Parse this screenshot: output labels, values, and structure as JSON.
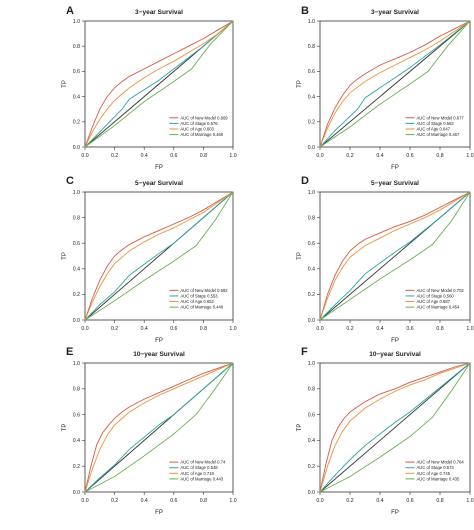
{
  "figure": {
    "xlabel": "FP",
    "ylabel": "TP",
    "ticks": [
      "0.0",
      "0.2",
      "0.4",
      "0.6",
      "0.8",
      "1.0"
    ]
  },
  "chart_data": [
    {
      "panel": "A",
      "type": "line",
      "title": "3−year Survival",
      "xlim": [
        0,
        1
      ],
      "ylim": [
        0,
        1
      ],
      "xlabel": "FP",
      "ylabel": "TP",
      "legend_position": "bottom-right",
      "legend": [
        "AUC of New Model 0.669",
        "AUC of Stage 0.576",
        "AUC of Age 0.603",
        "AUC of Marriage 0.460"
      ],
      "series": [
        {
          "name": "New Model",
          "color": "#d55a4a",
          "x": [
            0,
            0.05,
            0.1,
            0.15,
            0.2,
            0.25,
            0.3,
            0.4,
            0.5,
            0.6,
            0.7,
            0.8,
            0.9,
            1.0
          ],
          "y": [
            0,
            0.16,
            0.3,
            0.4,
            0.47,
            0.52,
            0.56,
            0.62,
            0.68,
            0.74,
            0.8,
            0.86,
            0.93,
            1.0
          ]
        },
        {
          "name": "Stage",
          "color": "#2aa7a0",
          "x": [
            0,
            0.1,
            0.25,
            0.3,
            0.5,
            0.6,
            0.8,
            1.0
          ],
          "y": [
            0,
            0.12,
            0.3,
            0.38,
            0.53,
            0.62,
            0.8,
            1.0
          ]
        },
        {
          "name": "Age",
          "color": "#e8963a",
          "x": [
            0,
            0.05,
            0.1,
            0.15,
            0.2,
            0.3,
            0.4,
            0.5,
            0.6,
            0.7,
            0.8,
            0.9,
            1.0
          ],
          "y": [
            0,
            0.12,
            0.22,
            0.3,
            0.37,
            0.47,
            0.55,
            0.62,
            0.68,
            0.75,
            0.82,
            0.9,
            1.0
          ]
        },
        {
          "name": "Marriage",
          "color": "#6ab04c",
          "x": [
            0,
            0.2,
            0.4,
            0.6,
            0.72,
            0.85,
            1.0
          ],
          "y": [
            0,
            0.17,
            0.36,
            0.52,
            0.62,
            0.82,
            1.0
          ]
        }
      ]
    },
    {
      "panel": "B",
      "type": "line",
      "title": "3−year Survival",
      "xlim": [
        0,
        1
      ],
      "ylim": [
        0,
        1
      ],
      "xlabel": "FP",
      "ylabel": "TP",
      "legend_position": "bottom-right",
      "legend": [
        "AUC of New Model 0.677",
        "AUC of Stage 0.582",
        "AUC of Age 0.647",
        "AUC of Marriage 0.467"
      ],
      "series": [
        {
          "name": "New Model",
          "color": "#d55a4a",
          "x": [
            0,
            0.05,
            0.1,
            0.15,
            0.2,
            0.25,
            0.3,
            0.4,
            0.5,
            0.6,
            0.7,
            0.8,
            0.9,
            1.0
          ],
          "y": [
            0,
            0.18,
            0.31,
            0.41,
            0.49,
            0.54,
            0.58,
            0.65,
            0.7,
            0.75,
            0.81,
            0.88,
            0.94,
            1.0
          ]
        },
        {
          "name": "Stage",
          "color": "#2aa7a0",
          "x": [
            0,
            0.1,
            0.25,
            0.3,
            0.5,
            0.6,
            0.8,
            1.0
          ],
          "y": [
            0,
            0.13,
            0.3,
            0.39,
            0.55,
            0.63,
            0.81,
            1.0
          ]
        },
        {
          "name": "Age",
          "color": "#e8963a",
          "x": [
            0,
            0.05,
            0.1,
            0.15,
            0.2,
            0.3,
            0.4,
            0.5,
            0.6,
            0.7,
            0.8,
            0.9,
            1.0
          ],
          "y": [
            0,
            0.15,
            0.27,
            0.36,
            0.43,
            0.52,
            0.59,
            0.65,
            0.71,
            0.77,
            0.84,
            0.92,
            1.0
          ]
        },
        {
          "name": "Marriage",
          "color": "#6ab04c",
          "x": [
            0,
            0.2,
            0.4,
            0.6,
            0.72,
            0.85,
            1.0
          ],
          "y": [
            0,
            0.16,
            0.34,
            0.5,
            0.6,
            0.8,
            1.0
          ]
        }
      ]
    },
    {
      "panel": "C",
      "type": "line",
      "title": "5−year Survival",
      "xlim": [
        0,
        1
      ],
      "ylim": [
        0,
        1
      ],
      "xlabel": "FP",
      "ylabel": "TP",
      "legend_position": "bottom-right",
      "legend": [
        "AUC of New Model 0.682",
        "AUC of Stage 0.553",
        "AUC of Age 0.652",
        "AUC of Marriage 0.440"
      ],
      "series": [
        {
          "name": "New Model",
          "color": "#d55a4a",
          "x": [
            0,
            0.05,
            0.1,
            0.15,
            0.2,
            0.25,
            0.3,
            0.4,
            0.5,
            0.6,
            0.7,
            0.8,
            0.9,
            1.0
          ],
          "y": [
            0,
            0.17,
            0.31,
            0.42,
            0.5,
            0.55,
            0.59,
            0.65,
            0.7,
            0.75,
            0.8,
            0.86,
            0.93,
            1.0
          ]
        },
        {
          "name": "Stage",
          "color": "#2aa7a0",
          "x": [
            0,
            0.1,
            0.2,
            0.3,
            0.5,
            0.6,
            0.8,
            1.0
          ],
          "y": [
            0,
            0.12,
            0.22,
            0.35,
            0.52,
            0.6,
            0.8,
            1.0
          ]
        },
        {
          "name": "Age",
          "color": "#e8963a",
          "x": [
            0,
            0.05,
            0.1,
            0.15,
            0.2,
            0.3,
            0.4,
            0.5,
            0.6,
            0.7,
            0.8,
            0.9,
            1.0
          ],
          "y": [
            0,
            0.14,
            0.26,
            0.36,
            0.44,
            0.54,
            0.61,
            0.67,
            0.72,
            0.78,
            0.84,
            0.92,
            1.0
          ]
        },
        {
          "name": "Marriage",
          "color": "#6ab04c",
          "x": [
            0,
            0.2,
            0.4,
            0.6,
            0.75,
            0.88,
            1.0
          ],
          "y": [
            0,
            0.15,
            0.31,
            0.46,
            0.58,
            0.78,
            1.0
          ]
        }
      ]
    },
    {
      "panel": "D",
      "type": "line",
      "title": "5−year Survival",
      "xlim": [
        0,
        1
      ],
      "ylim": [
        0,
        1
      ],
      "xlabel": "FP",
      "ylabel": "TP",
      "legend_position": "bottom-right",
      "legend": [
        "AUC of New Model 0.702",
        "AUC of Stage 0.560",
        "AUC of Age 0.687",
        "AUC of Marriage 0.454"
      ],
      "series": [
        {
          "name": "New Model",
          "color": "#d55a4a",
          "x": [
            0,
            0.05,
            0.1,
            0.15,
            0.2,
            0.25,
            0.3,
            0.4,
            0.5,
            0.6,
            0.7,
            0.8,
            0.9,
            1.0
          ],
          "y": [
            0,
            0.2,
            0.35,
            0.46,
            0.54,
            0.59,
            0.63,
            0.68,
            0.73,
            0.77,
            0.82,
            0.88,
            0.94,
            1.0
          ]
        },
        {
          "name": "Stage",
          "color": "#2aa7a0",
          "x": [
            0,
            0.1,
            0.2,
            0.3,
            0.5,
            0.6,
            0.8,
            1.0
          ],
          "y": [
            0,
            0.12,
            0.23,
            0.36,
            0.53,
            0.61,
            0.8,
            1.0
          ]
        },
        {
          "name": "Age",
          "color": "#e8963a",
          "x": [
            0,
            0.05,
            0.1,
            0.15,
            0.2,
            0.3,
            0.4,
            0.5,
            0.6,
            0.7,
            0.8,
            0.9,
            1.0
          ],
          "y": [
            0,
            0.17,
            0.31,
            0.41,
            0.49,
            0.58,
            0.64,
            0.7,
            0.75,
            0.8,
            0.86,
            0.93,
            1.0
          ]
        },
        {
          "name": "Marriage",
          "color": "#6ab04c",
          "x": [
            0,
            0.2,
            0.4,
            0.6,
            0.75,
            0.88,
            1.0
          ],
          "y": [
            0,
            0.16,
            0.32,
            0.47,
            0.59,
            0.78,
            1.0
          ]
        }
      ]
    },
    {
      "panel": "E",
      "type": "line",
      "title": "10−year Survival",
      "xlim": [
        0,
        1
      ],
      "ylim": [
        0,
        1
      ],
      "xlabel": "FP",
      "ylabel": "TP",
      "legend_position": "bottom-right",
      "legend": [
        "AUC of New Model 0.74",
        "AUC of Stage 0.548",
        "AUC of Age 0.718",
        "AUC of Marriage 0.443"
      ],
      "series": [
        {
          "name": "New Model",
          "color": "#d55a4a",
          "x": [
            0,
            0.04,
            0.08,
            0.12,
            0.16,
            0.2,
            0.25,
            0.3,
            0.4,
            0.5,
            0.6,
            0.7,
            0.8,
            0.9,
            1.0
          ],
          "y": [
            0,
            0.2,
            0.37,
            0.46,
            0.52,
            0.57,
            0.62,
            0.66,
            0.72,
            0.77,
            0.82,
            0.87,
            0.92,
            0.96,
            1.0
          ]
        },
        {
          "name": "Stage",
          "color": "#2aa7a0",
          "x": [
            0,
            0.1,
            0.2,
            0.3,
            0.5,
            0.6,
            0.8,
            1.0
          ],
          "y": [
            0,
            0.11,
            0.21,
            0.33,
            0.52,
            0.6,
            0.8,
            1.0
          ]
        },
        {
          "name": "Age",
          "color": "#e8963a",
          "x": [
            0,
            0.05,
            0.1,
            0.15,
            0.2,
            0.3,
            0.4,
            0.5,
            0.6,
            0.7,
            0.8,
            0.9,
            1.0
          ],
          "y": [
            0,
            0.18,
            0.33,
            0.44,
            0.52,
            0.62,
            0.69,
            0.75,
            0.8,
            0.85,
            0.9,
            0.95,
            1.0
          ]
        },
        {
          "name": "Marriage",
          "color": "#6ab04c",
          "x": [
            0,
            0.2,
            0.4,
            0.6,
            0.75,
            0.88,
            1.0
          ],
          "y": [
            0,
            0.12,
            0.28,
            0.45,
            0.6,
            0.8,
            1.0
          ]
        }
      ]
    },
    {
      "panel": "F",
      "type": "line",
      "title": "10−year Survival",
      "xlim": [
        0,
        1
      ],
      "ylim": [
        0,
        1
      ],
      "xlabel": "FP",
      "ylabel": "TP",
      "legend_position": "bottom-right",
      "legend": [
        "AUC of New Model 0.764",
        "AUC of Stage 0.573",
        "AUC of Age 0.745",
        "AUC of Marriage 0.435"
      ],
      "series": [
        {
          "name": "New Model",
          "color": "#d55a4a",
          "x": [
            0,
            0.04,
            0.08,
            0.12,
            0.16,
            0.2,
            0.25,
            0.3,
            0.4,
            0.5,
            0.6,
            0.7,
            0.8,
            0.9,
            1.0
          ],
          "y": [
            0,
            0.22,
            0.4,
            0.5,
            0.57,
            0.62,
            0.66,
            0.7,
            0.76,
            0.8,
            0.85,
            0.89,
            0.93,
            0.97,
            1.0
          ]
        },
        {
          "name": "Stage",
          "color": "#2aa7a0",
          "x": [
            0,
            0.1,
            0.2,
            0.3,
            0.5,
            0.6,
            0.8,
            1.0
          ],
          "y": [
            0,
            0.13,
            0.25,
            0.36,
            0.54,
            0.62,
            0.81,
            1.0
          ]
        },
        {
          "name": "Age",
          "color": "#e8963a",
          "x": [
            0,
            0.05,
            0.1,
            0.15,
            0.2,
            0.3,
            0.4,
            0.5,
            0.6,
            0.7,
            0.8,
            0.9,
            1.0
          ],
          "y": [
            0,
            0.2,
            0.36,
            0.47,
            0.55,
            0.65,
            0.72,
            0.78,
            0.83,
            0.87,
            0.92,
            0.96,
            1.0
          ]
        },
        {
          "name": "Marriage",
          "color": "#6ab04c",
          "x": [
            0,
            0.2,
            0.4,
            0.6,
            0.75,
            0.88,
            1.0
          ],
          "y": [
            0,
            0.12,
            0.27,
            0.43,
            0.58,
            0.79,
            1.0
          ]
        }
      ]
    }
  ]
}
